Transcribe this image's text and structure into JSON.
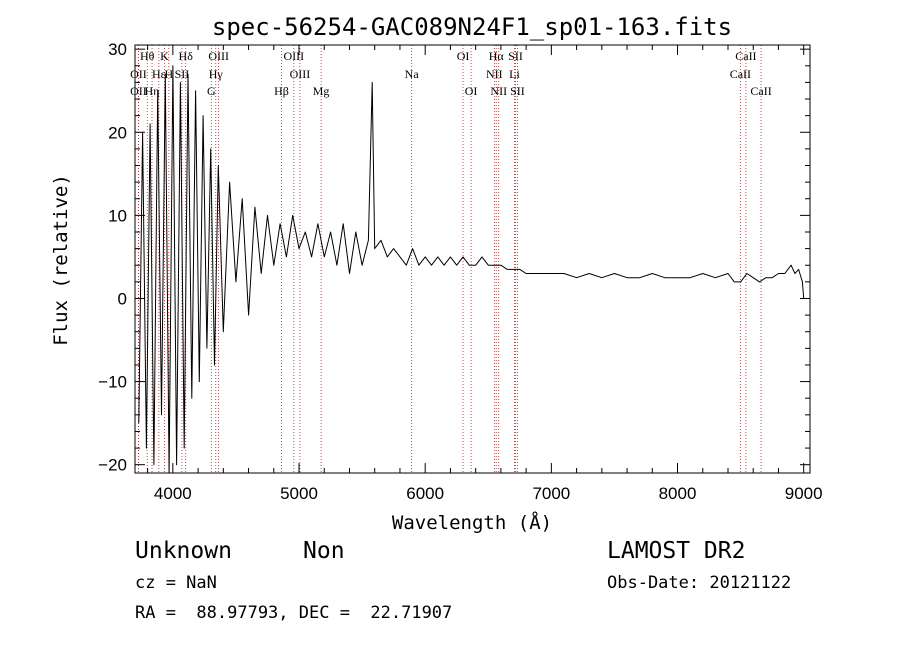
{
  "chart_data": {
    "type": "line",
    "title": "spec-56254-GAC089N24F1_sp01-163.fits",
    "xlabel": "Wavelength (Å)",
    "ylabel": "Flux (relative)",
    "xlim": [
      3700,
      9050
    ],
    "ylim": [
      -21,
      30.5
    ],
    "xticks": [
      4000,
      5000,
      6000,
      7000,
      8000,
      9000
    ],
    "yticks": [
      -20,
      -10,
      0,
      10,
      20,
      30
    ],
    "grid": false,
    "line_color": "#000000",
    "marker_color": "#b22222",
    "series": [
      {
        "x": [
          3730,
          3760,
          3790,
          3820,
          3850,
          3880,
          3910,
          3940,
          3970,
          4000,
          4030,
          4060,
          4090,
          4120,
          4150,
          4180,
          4210,
          4240,
          4270,
          4300,
          4330,
          4360,
          4400,
          4450,
          4500,
          4550,
          4600,
          4650,
          4700,
          4750,
          4800,
          4850,
          4900,
          4950,
          5000,
          5050,
          5100,
          5150,
          5200,
          5250,
          5300,
          5350,
          5400,
          5450,
          5500,
          5550,
          5580,
          5600,
          5650,
          5700,
          5750,
          5800,
          5850,
          5900,
          5950,
          6000,
          6050,
          6100,
          6150,
          6200,
          6250,
          6300,
          6350,
          6400,
          6450,
          6500,
          6550,
          6600,
          6650,
          6700,
          6750,
          6800,
          6900,
          7000,
          7100,
          7200,
          7300,
          7400,
          7500,
          7600,
          7700,
          7800,
          7900,
          8000,
          8100,
          8200,
          8300,
          8400,
          8450,
          8500,
          8550,
          8600,
          8650,
          8700,
          8750,
          8800,
          8850,
          8900,
          8930,
          8960,
          8990,
          9000
        ],
        "values": [
          -15,
          20,
          -18,
          21,
          -20,
          25,
          -14,
          27,
          -21,
          28,
          -20,
          26,
          -18,
          27,
          -12,
          25,
          -10,
          22,
          -6,
          18,
          -8,
          16,
          -4,
          14,
          2,
          12,
          -2,
          11,
          3,
          10,
          4,
          9,
          5,
          10,
          6,
          8,
          5,
          9,
          5,
          8,
          4,
          9,
          3,
          8,
          4,
          7,
          26,
          6,
          7,
          5,
          6,
          5,
          4,
          6,
          4,
          5,
          4,
          5,
          4,
          5,
          4,
          5,
          4,
          4,
          5,
          4,
          4,
          4,
          3.5,
          3.5,
          3.5,
          3,
          3,
          3,
          3,
          2.5,
          3,
          2.5,
          3,
          2.5,
          2.5,
          3,
          2.5,
          2.5,
          2.5,
          3,
          2.5,
          3,
          2,
          2,
          3,
          2.5,
          2,
          2.5,
          2.5,
          3,
          3,
          4,
          3,
          3.5,
          2,
          0
        ]
      }
    ],
    "lines": [
      {
        "label": "Hθ",
        "x": 3797,
        "row": 0
      },
      {
        "label": "K",
        "x": 3934,
        "row": 0
      },
      {
        "label": "Hδ",
        "x": 4102,
        "row": 0
      },
      {
        "label": "OIII",
        "x": 4363,
        "row": 0
      },
      {
        "label": "OIII",
        "x": 4959,
        "row": 0
      },
      {
        "label": "OI",
        "x": 6300,
        "row": 0
      },
      {
        "label": "Hα",
        "x": 6563,
        "row": 0
      },
      {
        "label": "SII",
        "x": 6716,
        "row": 0
      },
      {
        "label": "CaII",
        "x": 8542,
        "row": 0
      },
      {
        "label": "OII",
        "x": 3727,
        "row": 1
      },
      {
        "label": "Hε",
        "x": 3889,
        "row": 1
      },
      {
        "label": "H",
        "x": 3968,
        "row": 1
      },
      {
        "label": "SII",
        "x": 4072,
        "row": 1
      },
      {
        "label": "Hγ",
        "x": 4340,
        "row": 1
      },
      {
        "label": "OIII",
        "x": 5007,
        "row": 1
      },
      {
        "label": "Na",
        "x": 5893,
        "row": 1
      },
      {
        "label": "NII",
        "x": 6548,
        "row": 1
      },
      {
        "label": "Li",
        "x": 6708,
        "row": 1
      },
      {
        "label": "CaII",
        "x": 8498,
        "row": 1
      },
      {
        "label": "OII",
        "x": 3727,
        "row": 2
      },
      {
        "label": "Hη",
        "x": 3835,
        "row": 2
      },
      {
        "label": "G",
        "x": 4305,
        "row": 2
      },
      {
        "label": "Hβ",
        "x": 4861,
        "row": 2
      },
      {
        "label": "Mg",
        "x": 5175,
        "row": 2
      },
      {
        "label": "OI",
        "x": 6364,
        "row": 2
      },
      {
        "label": "NII",
        "x": 6583,
        "row": 2
      },
      {
        "label": "SII",
        "x": 6731,
        "row": 2
      },
      {
        "label": "CaII",
        "x": 8662,
        "row": 2
      }
    ]
  },
  "info": {
    "class": "Unknown",
    "subclass": "Non",
    "cz": "cz = NaN",
    "coords": "RA =  88.97793, DEC =  22.71907",
    "survey": "LAMOST DR2",
    "obs_date": "Obs-Date: 20121122"
  }
}
